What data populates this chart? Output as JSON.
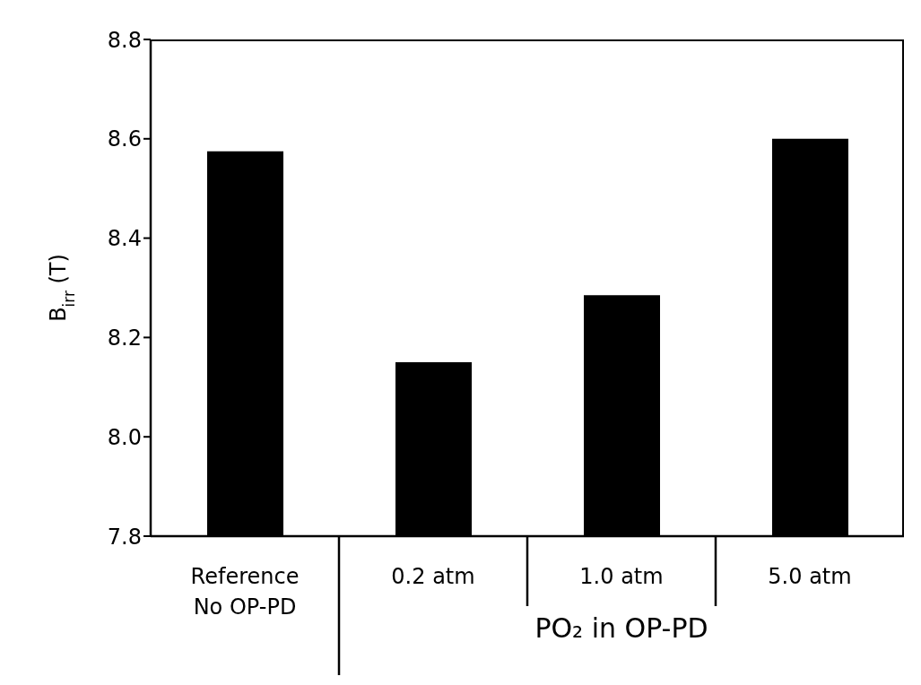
{
  "chart_data": {
    "type": "bar",
    "ylabel": "B$_{irr}$ (T)",
    "xlabel": "PO₂ in OP-PD",
    "categories": [
      "Reference\nNo OP-PD",
      "0.2 atm",
      "1.0 atm",
      "5.0 atm"
    ],
    "values": [
      8.575,
      8.15,
      8.285,
      8.6
    ],
    "color": "#000000",
    "ylim": [
      7.8,
      8.8
    ],
    "yticks": [
      {
        "value": 7.8,
        "label": "7.8"
      },
      {
        "value": 8,
        "label": "8.0"
      },
      {
        "value": 8.2,
        "label": "8.2"
      },
      {
        "value": 8.4,
        "label": "8.4"
      },
      {
        "value": 8.6,
        "label": "8.6"
      },
      {
        "value": 8.8,
        "label": "8.8"
      }
    ],
    "grid": false,
    "legend": false
  }
}
